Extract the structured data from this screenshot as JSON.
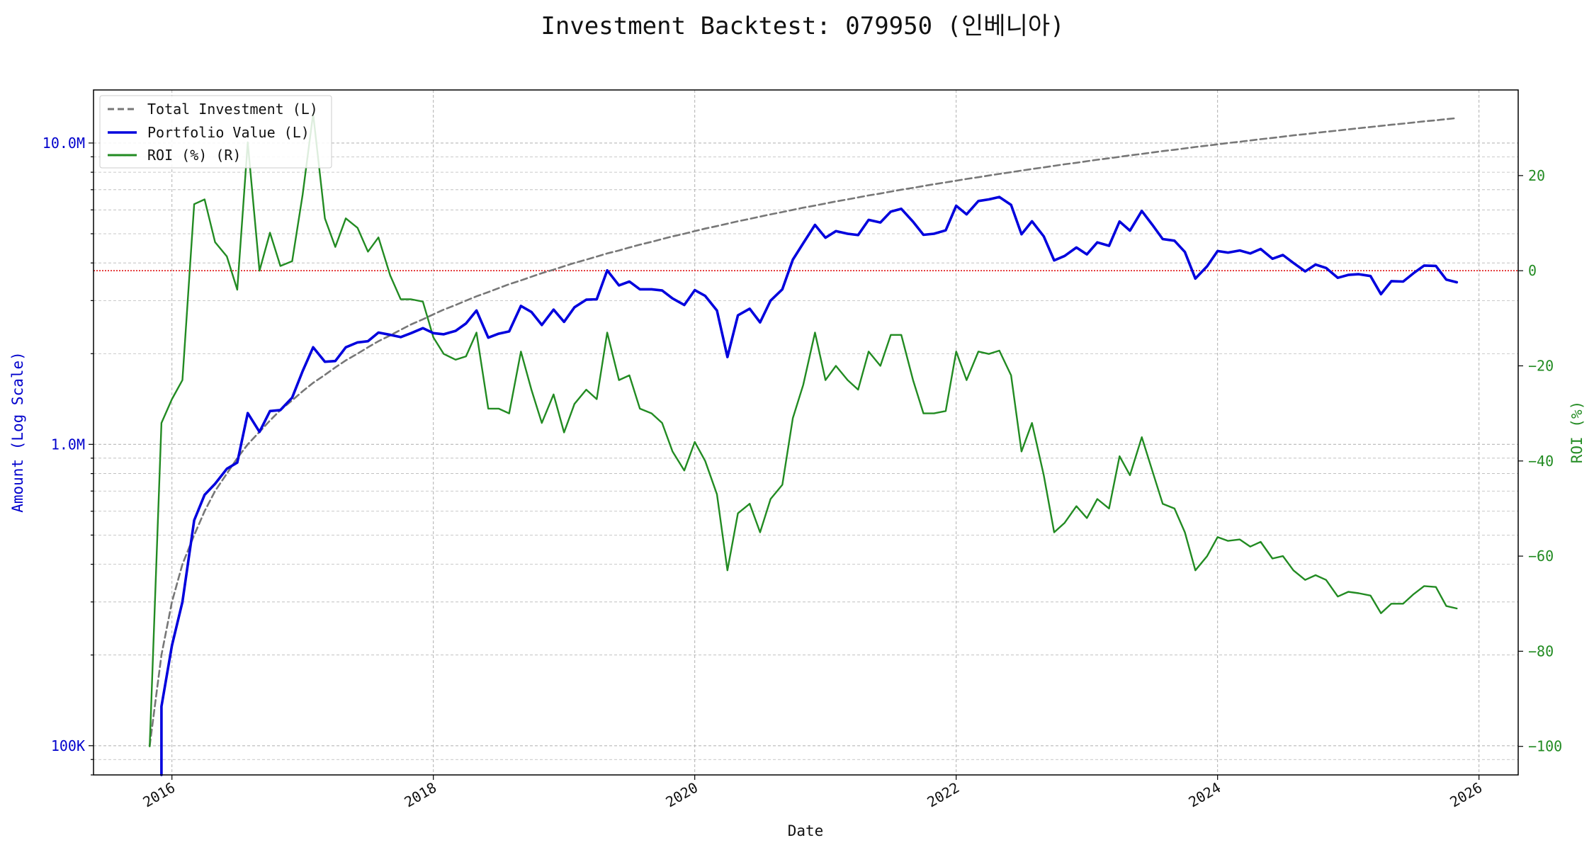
{
  "chart_data": {
    "type": "line",
    "title": "Investment Backtest: 079950 (인베니아)",
    "xlabel": "Date",
    "ylabel_left": "Amount (Log Scale)",
    "ylabel_right": "ROI (%)",
    "left_axis": {
      "scale": "log",
      "ylim": [
        80000,
        15000000
      ],
      "ticks": [
        100000,
        1000000,
        10000000
      ],
      "tick_labels": [
        "100K",
        "1.0M",
        "10.0M"
      ],
      "color": "#0000cc"
    },
    "right_axis": {
      "scale": "linear",
      "ylim": [
        -106,
        38
      ],
      "ticks": [
        -100,
        -80,
        -60,
        -40,
        -20,
        0,
        20
      ],
      "tick_labels": [
        "−100",
        "−80",
        "−60",
        "−40",
        "−20",
        "0",
        "20"
      ],
      "color": "#228b22"
    },
    "x_axis": {
      "xlim": [
        2015.4,
        2026.3
      ],
      "ticks": [
        2016,
        2018,
        2020,
        2022,
        2024,
        2026
      ],
      "tick_labels": [
        "2016",
        "2018",
        "2020",
        "2022",
        "2024",
        "2026"
      ]
    },
    "grid": true,
    "legend_position": "top-left",
    "reference_line": {
      "axis": "right",
      "value": 0,
      "color": "#dd0000",
      "style": "dotted"
    },
    "x": [
      2015.83,
      2015.92,
      2016.0,
      2016.08,
      2016.17,
      2016.25,
      2016.33,
      2016.42,
      2016.5,
      2016.58,
      2016.67,
      2016.75,
      2016.83,
      2016.92,
      2017.0,
      2017.08,
      2017.17,
      2017.25,
      2017.33,
      2017.42,
      2017.5,
      2017.58,
      2017.67,
      2017.75,
      2017.83,
      2017.92,
      2018.0,
      2018.08,
      2018.17,
      2018.25,
      2018.33,
      2018.42,
      2018.5,
      2018.58,
      2018.67,
      2018.75,
      2018.83,
      2018.92,
      2019.0,
      2019.08,
      2019.17,
      2019.25,
      2019.33,
      2019.42,
      2019.5,
      2019.58,
      2019.67,
      2019.75,
      2019.83,
      2019.92,
      2020.0,
      2020.08,
      2020.17,
      2020.25,
      2020.33,
      2020.42,
      2020.5,
      2020.58,
      2020.67,
      2020.75,
      2020.83,
      2020.92,
      2021.0,
      2021.08,
      2021.17,
      2021.25,
      2021.33,
      2021.42,
      2021.5,
      2021.58,
      2021.67,
      2021.75,
      2021.83,
      2021.92,
      2022.0,
      2022.08,
      2022.17,
      2022.25,
      2022.33,
      2022.42,
      2022.5,
      2022.58,
      2022.67,
      2022.75,
      2022.83,
      2022.92,
      2023.0,
      2023.08,
      2023.17,
      2023.25,
      2023.33,
      2023.42,
      2023.5,
      2023.58,
      2023.67,
      2023.75,
      2023.83,
      2023.92,
      2024.0,
      2024.08,
      2024.17,
      2024.25,
      2024.33,
      2024.42,
      2024.5,
      2024.58,
      2024.67,
      2024.75,
      2024.83,
      2024.92,
      2025.0,
      2025.08,
      2025.17,
      2025.25,
      2025.33,
      2025.42,
      2025.5,
      2025.58,
      2025.67,
      2025.75,
      2025.83
    ],
    "series": [
      {
        "name": "Total Investment (L)",
        "axis": "left",
        "color": "#777777",
        "style": "dashed",
        "values": [
          100000,
          200000,
          300000,
          400000,
          500000,
          600000,
          700000,
          800000,
          900000,
          1000000,
          1100000,
          1200000,
          1300000,
          1400000,
          1500000,
          1600000,
          1700000,
          1800000,
          1900000,
          2000000,
          2100000,
          2200000,
          2300000,
          2400000,
          2500000,
          2600000,
          2700000,
          2800000,
          2900000,
          3000000,
          3100000,
          3200000,
          3300000,
          3400000,
          3500000,
          3600000,
          3700000,
          3800000,
          3900000,
          4000000,
          4100000,
          4200000,
          4300000,
          4400000,
          4500000,
          4600000,
          4700000,
          4800000,
          4900000,
          5000000,
          5100000,
          5200000,
          5300000,
          5400000,
          5500000,
          5600000,
          5700000,
          5800000,
          5900000,
          6000000,
          6100000,
          6200000,
          6300000,
          6400000,
          6500000,
          6600000,
          6700000,
          6800000,
          6900000,
          7000000,
          7100000,
          7200000,
          7300000,
          7400000,
          7500000,
          7600000,
          7700000,
          7800000,
          7900000,
          8000000,
          8100000,
          8200000,
          8300000,
          8400000,
          8500000,
          8600000,
          8700000,
          8800000,
          8900000,
          9000000,
          9100000,
          9200000,
          9300000,
          9400000,
          9500000,
          9600000,
          9700000,
          9800000,
          9900000,
          10000000,
          10100000,
          10200000,
          10300000,
          10400000,
          10500000,
          10600000,
          10700000,
          10800000,
          10900000,
          11000000,
          11100000,
          11200000,
          11300000,
          11400000,
          11500000,
          11600000,
          11700000,
          11800000,
          11900000,
          12000000,
          12100000
        ]
      },
      {
        "name": "Portfolio Value (L)",
        "axis": "left",
        "color": "#0000dd",
        "style": "solid",
        "values": [
          null,
          135000,
          215000,
          300000,
          560000,
          680000,
          740000,
          830000,
          870000,
          1270000,
          1100000,
          1290000,
          1300000,
          1430000,
          1750000,
          2100000,
          1880000,
          1890000,
          2100000,
          2180000,
          2200000,
          2350000,
          2310000,
          2270000,
          2340000,
          2430000,
          2340000,
          2320000,
          2380000,
          2520000,
          2780000,
          2260000,
          2330000,
          2370000,
          2880000,
          2750000,
          2490000,
          2800000,
          2550000,
          2850000,
          3020000,
          3030000,
          3780000,
          3370000,
          3470000,
          3270000,
          3270000,
          3240000,
          3050000,
          2900000,
          3250000,
          3110000,
          2780000,
          1950000,
          2680000,
          2820000,
          2540000,
          3000000,
          3270000,
          4100000,
          4650000,
          5350000,
          4850000,
          5100000,
          5000000,
          4950000,
          5560000,
          5450000,
          5920000,
          6050000,
          5480000,
          4960000,
          5000000,
          5130000,
          6190000,
          5800000,
          6420000,
          6500000,
          6620000,
          6230000,
          4980000,
          5500000,
          4900000,
          4080000,
          4220000,
          4500000,
          4270000,
          4680000,
          4560000,
          5490000,
          5120000,
          5950000,
          5360000,
          4800000,
          4740000,
          4350000,
          3550000,
          3900000,
          4380000,
          4330000,
          4400000,
          4300000,
          4450000,
          4130000,
          4250000,
          4000000,
          3750000,
          3950000,
          3850000,
          3570000,
          3650000,
          3670000,
          3620000,
          3150000,
          3480000,
          3470000,
          3700000,
          3920000,
          3910000,
          3520000,
          3450000
        ]
      },
      {
        "name": "ROI (%) (R)",
        "axis": "right",
        "color": "#228b22",
        "style": "solid",
        "values": [
          -100,
          -32,
          -27,
          -23,
          14,
          15,
          6,
          3,
          -4,
          27,
          0,
          8,
          1,
          2,
          16,
          33,
          11,
          5,
          11,
          9,
          4,
          7,
          -1,
          -6,
          -6,
          -6.5,
          -14,
          -17.5,
          -18.7,
          -18,
          -13,
          -29,
          -29,
          -30,
          -17,
          -25,
          -32,
          -26,
          -34,
          -28,
          -25,
          -27,
          -13,
          -23,
          -22,
          -29,
          -30,
          -32,
          -38,
          -42,
          -36,
          -40,
          -47,
          -63,
          -51,
          -49,
          -55,
          -48,
          -45,
          -31,
          -24,
          -13,
          -23,
          -20,
          -23,
          -25,
          -17,
          -20,
          -13.5,
          -13.5,
          -23,
          -30,
          -30,
          -29.5,
          -17,
          -23,
          -17,
          -17.5,
          -16.8,
          -22,
          -38,
          -32,
          -43,
          -55,
          -53,
          -49.5,
          -52,
          -48,
          -50,
          -39,
          -43,
          -35,
          -42,
          -49,
          -50,
          -55,
          -63,
          -60,
          -56,
          -56.8,
          -56.5,
          -58,
          -57,
          -60.5,
          -60,
          -63,
          -65,
          -64,
          -65,
          -68.5,
          -67.5,
          -67.8,
          -68.3,
          -72,
          -70,
          -70,
          -68,
          -66.3,
          -66.5,
          -70.5,
          -71
        ]
      }
    ]
  }
}
